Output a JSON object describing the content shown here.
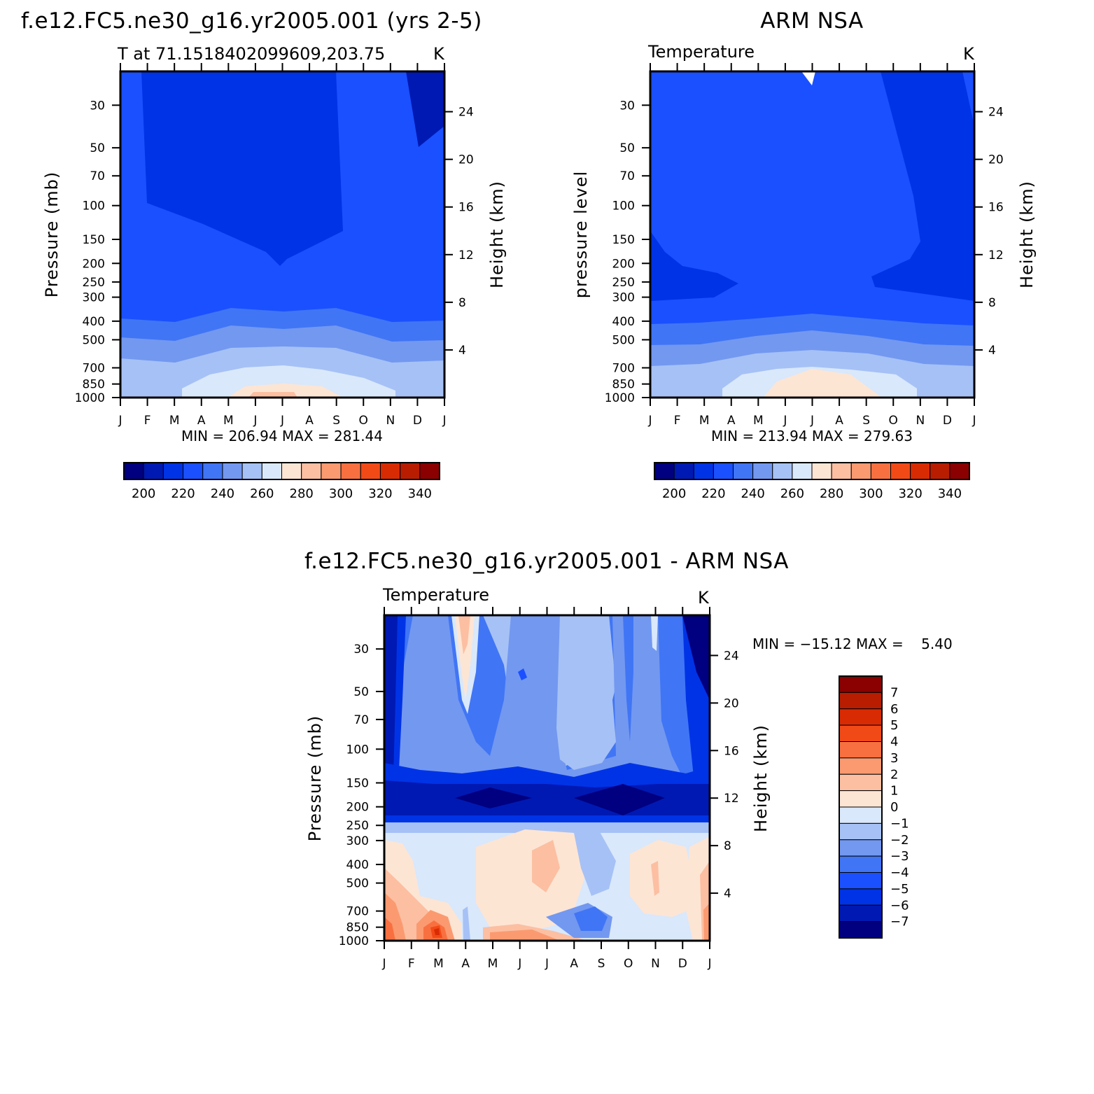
{
  "chart_data": [
    {
      "type": "heatmap",
      "id": "model",
      "title": "f.e12.FC5.ne30_g16.yr2005.001 (yrs 2-5)",
      "subtitle_left": "T at 71.1518402099609,203.75",
      "subtitle_right": "K",
      "xlabel": "",
      "ylabel": "Pressure (mb)",
      "ylabel_right": "Height (km)",
      "x_ticks": [
        "J",
        "F",
        "M",
        "A",
        "M",
        "J",
        "J",
        "A",
        "S",
        "O",
        "N",
        "D",
        "J"
      ],
      "y_ticks": [
        30,
        50,
        70,
        100,
        150,
        200,
        250,
        300,
        400,
        500,
        700,
        850,
        1000
      ],
      "y_right_ticks": [
        4,
        8,
        12,
        16,
        20,
        24
      ],
      "ylim": [
        1000,
        20
      ],
      "min_max_label": "MIN = 206.94 MAX = 281.44",
      "min": 206.94,
      "max": 281.44,
      "units": "K",
      "colorbar_labels": [
        "200",
        "220",
        "240",
        "260",
        "280",
        "300",
        "320",
        "340"
      ],
      "contour_levels": [
        195,
        205,
        215,
        225,
        235,
        245,
        255,
        265,
        275,
        285,
        295,
        305,
        315,
        325,
        335,
        345
      ],
      "layers_bottom_to_top": [
        {
          "level_hPa": 1000,
          "value": 276
        },
        {
          "level_hPa": 850,
          "value": 272
        },
        {
          "level_hPa": 700,
          "value": 262
        },
        {
          "level_hPa": 500,
          "value": 248
        },
        {
          "level_hPa": 400,
          "value": 238
        },
        {
          "level_hPa": 300,
          "value": 226
        },
        {
          "level_hPa": 100,
          "value": 218
        },
        {
          "level_hPa": 30,
          "value": 212
        }
      ]
    },
    {
      "type": "heatmap",
      "id": "obs",
      "title": "ARM NSA",
      "subtitle_left": "Temperature",
      "subtitle_right": "K",
      "xlabel": "",
      "ylabel": "pressure level",
      "ylabel_right": "Height (km)",
      "x_ticks": [
        "J",
        "F",
        "M",
        "A",
        "M",
        "J",
        "J",
        "A",
        "S",
        "O",
        "N",
        "D",
        "J"
      ],
      "y_ticks": [
        30,
        50,
        70,
        100,
        150,
        200,
        250,
        300,
        400,
        500,
        700,
        850,
        1000
      ],
      "y_right_ticks": [
        4,
        8,
        12,
        16,
        20,
        24
      ],
      "ylim": [
        1000,
        20
      ],
      "min_max_label": "MIN = 213.94 MAX = 279.63",
      "min": 213.94,
      "max": 279.63,
      "units": "K",
      "colorbar_labels": [
        "200",
        "220",
        "240",
        "260",
        "280",
        "300",
        "320",
        "340"
      ],
      "contour_levels": [
        195,
        205,
        215,
        225,
        235,
        245,
        255,
        265,
        275,
        285,
        295,
        305,
        315,
        325,
        335,
        345
      ]
    },
    {
      "type": "heatmap",
      "id": "diff",
      "title": "f.e12.FC5.ne30_g16.yr2005.001 - ARM NSA",
      "subtitle_left": "Temperature",
      "subtitle_right": "K",
      "xlabel": "",
      "ylabel": "Pressure (mb)",
      "ylabel_right": "Height (km)",
      "x_ticks": [
        "J",
        "F",
        "M",
        "A",
        "M",
        "J",
        "J",
        "A",
        "S",
        "O",
        "N",
        "D",
        "J"
      ],
      "y_ticks": [
        30,
        50,
        70,
        100,
        150,
        200,
        250,
        300,
        400,
        500,
        700,
        850,
        1000
      ],
      "y_right_ticks": [
        4,
        8,
        12,
        16,
        20,
        24
      ],
      "ylim": [
        1000,
        20
      ],
      "min_max_label": "MIN = −15.12 MAX =    5.40",
      "min": -15.12,
      "max": 5.4,
      "units": "K",
      "colorbar_labels": [
        "7",
        "6",
        "5",
        "4",
        "3",
        "2",
        "1",
        "0",
        "−1",
        "−2",
        "−3",
        "−4",
        "−5",
        "−6",
        "−7"
      ],
      "contour_levels": [
        -7,
        -6,
        -5,
        -4,
        -3,
        -2,
        -1,
        0,
        1,
        2,
        3,
        4,
        5,
        6,
        7
      ]
    }
  ],
  "colors": {
    "temp_scale": [
      "#000080",
      "#0019b3",
      "#0033e6",
      "#1a50ff",
      "#4075f5",
      "#7398f0",
      "#a6c1f5",
      "#d9e8fb",
      "#fde5d4",
      "#fcbfa2",
      "#fb9a70",
      "#f97040",
      "#f24a17",
      "#d92b03",
      "#b81d02",
      "#8b0000"
    ],
    "diff_scale": [
      "#000080",
      "#0019b3",
      "#0033e6",
      "#1a50ff",
      "#4075f5",
      "#7398f0",
      "#a6c1f5",
      "#d9e8fb",
      "#fde5d4",
      "#fcbfa2",
      "#fb9a70",
      "#f97040",
      "#f24a17",
      "#d92b03",
      "#b81d02",
      "#8b0000"
    ]
  }
}
